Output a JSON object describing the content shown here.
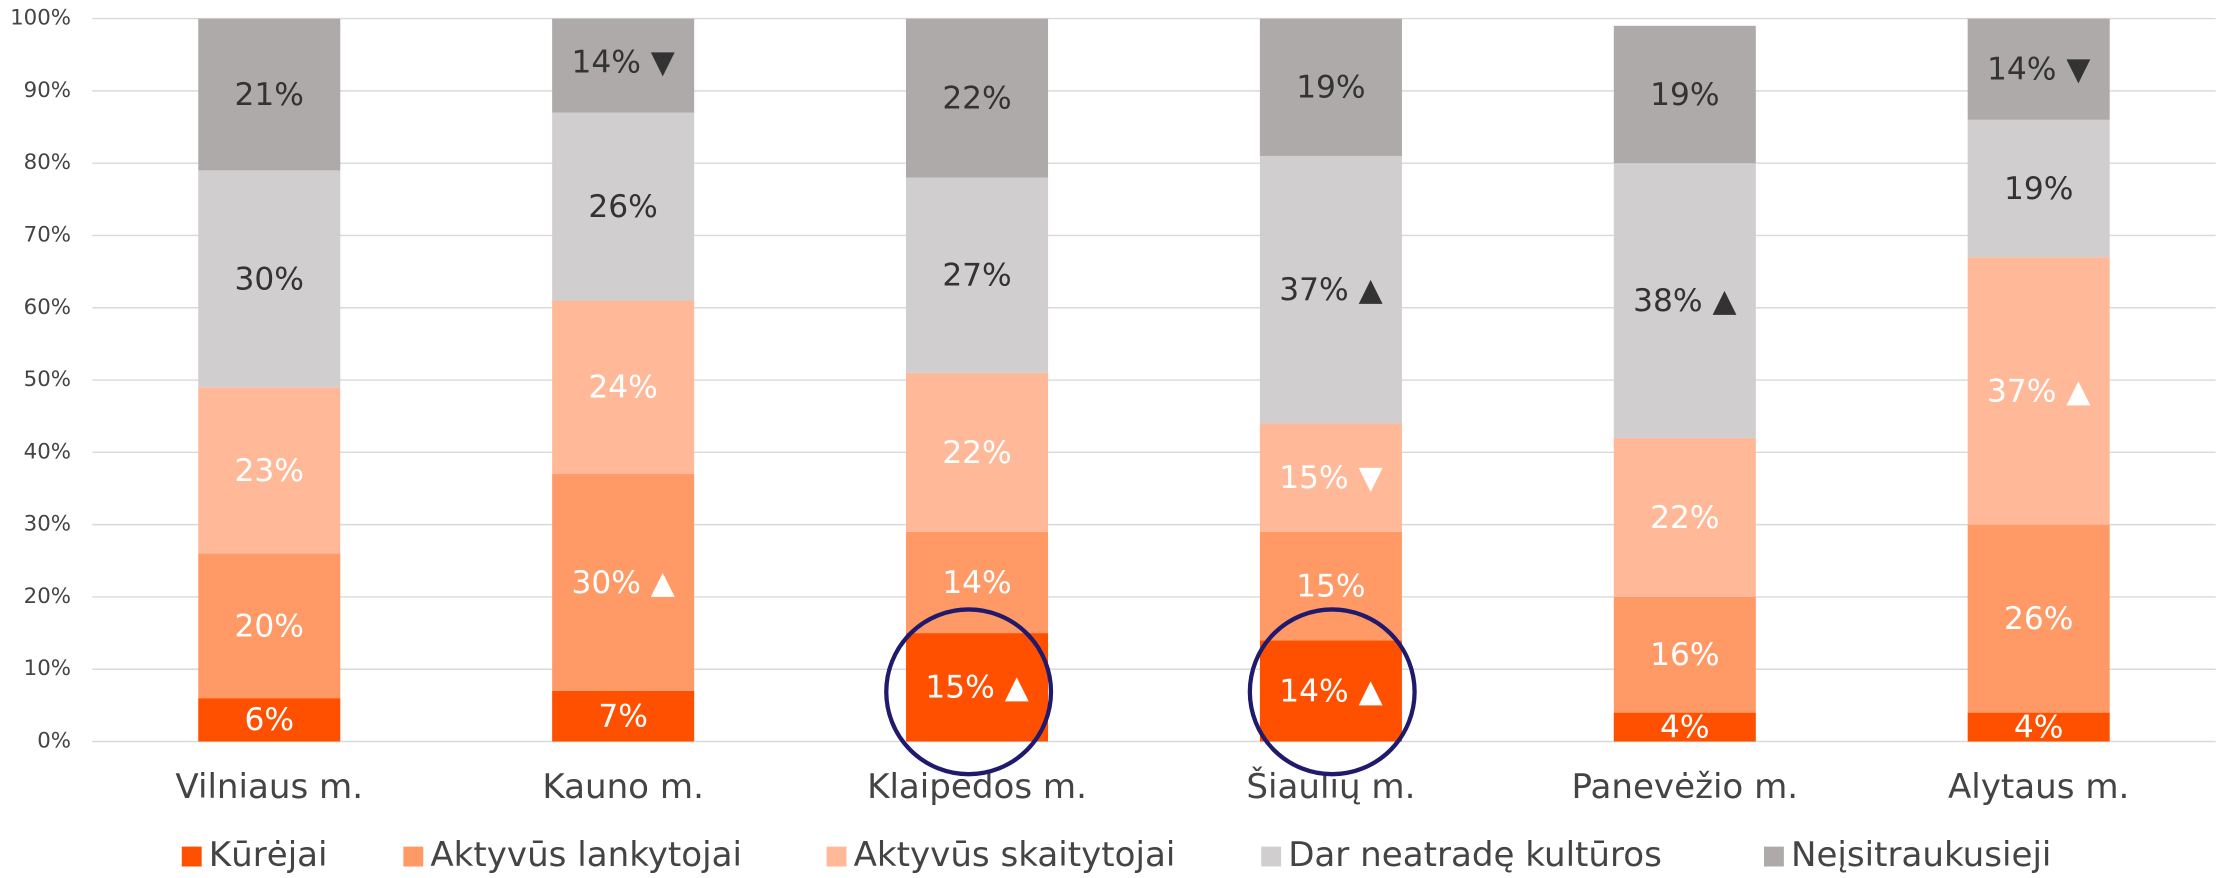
{
  "chart_data": {
    "type": "stacked_bar",
    "categories": [
      "Vilniaus m.",
      "Kauno m.",
      "Klaipėdos m.",
      "Šiaulių m.",
      "Panevėžio m.",
      "Alytaus m."
    ],
    "series": [
      {
        "name": "Kūrėjai",
        "color": "#ff5000",
        "label_color": "#ffffff",
        "values": [
          6,
          7,
          15,
          14,
          4,
          4
        ],
        "value_labels": [
          "6%",
          "7%",
          "15% ▲",
          "14% ▲",
          "4%",
          "4%"
        ]
      },
      {
        "name": "Aktyvūs lankytojai",
        "color": "#ff9966",
        "label_color": "#ffffff",
        "values": [
          20,
          30,
          14,
          15,
          16,
          26
        ],
        "value_labels": [
          "20%",
          "30% ▲",
          "14%",
          "15%",
          "16%",
          "26%"
        ]
      },
      {
        "name": "Aktyvūs skaitytojai",
        "color": "#ffb999",
        "label_color": "#ffffff",
        "values": [
          23,
          24,
          22,
          15,
          22,
          37
        ],
        "value_labels": [
          "23%",
          "24%",
          "22%",
          "15% ▼",
          "22%",
          "37% ▲"
        ]
      },
      {
        "name": "Dar neatradę kultūros",
        "color": "#d0cece",
        "label_color": "#333333",
        "values": [
          30,
          26,
          27,
          37,
          38,
          19
        ],
        "value_labels": [
          "30%",
          "26%",
          "27%",
          "37% ▲",
          "38% ▲",
          "19%"
        ]
      },
      {
        "name": "Neįsitraukusieji",
        "color": "#aeaaaa",
        "label_color": "#333333",
        "values": [
          21,
          14,
          22,
          19,
          19,
          14
        ],
        "value_labels": [
          "21%",
          "14% ▼",
          "22%",
          "19%",
          "19%",
          "14% ▼"
        ]
      }
    ],
    "ylim": [
      0,
      100
    ],
    "yticks": [
      {
        "value": 0,
        "label": "0%"
      },
      {
        "value": 10,
        "label": "10%"
      },
      {
        "value": 20,
        "label": "20%"
      },
      {
        "value": 30,
        "label": "30%"
      },
      {
        "value": 40,
        "label": "40%"
      },
      {
        "value": 50,
        "label": "50%"
      },
      {
        "value": 60,
        "label": "60%"
      },
      {
        "value": 70,
        "label": "70%"
      },
      {
        "value": 80,
        "label": "80%"
      },
      {
        "value": 90,
        "label": "90%"
      },
      {
        "value": 100,
        "label": "100%"
      }
    ],
    "grid": true,
    "legend": "bottom"
  }
}
